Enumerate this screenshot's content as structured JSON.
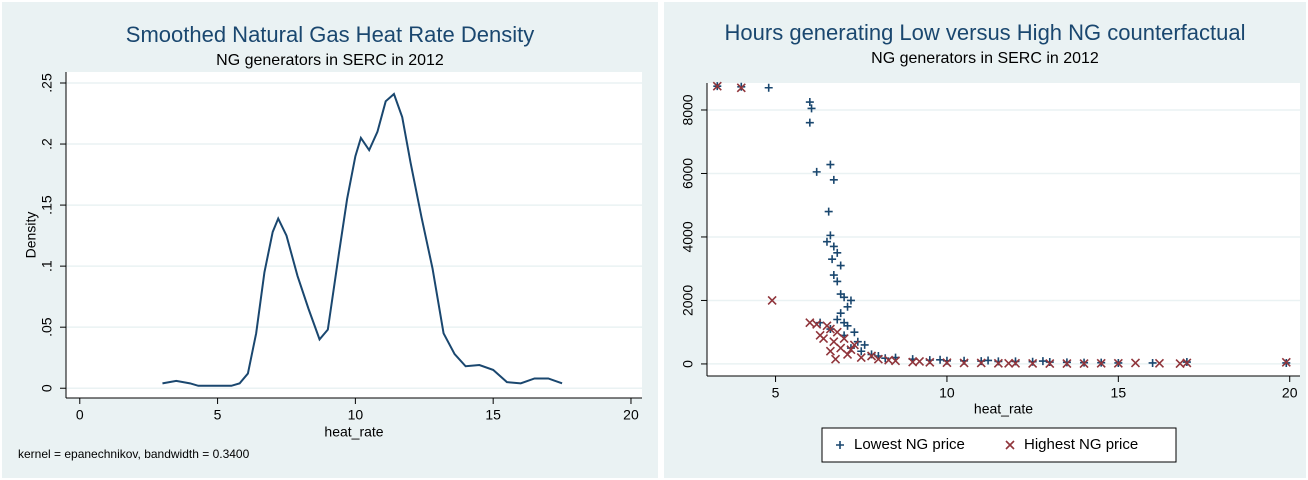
{
  "chart_data": [
    {
      "type": "line",
      "title": "Smoothed Natural Gas Heat Rate Density",
      "subtitle": "NG generators in SERC in 2012",
      "x_label": "heat_rate",
      "y_label": "Density",
      "note": "kernel = epanechnikov, bandwidth = 0.3400",
      "xlim": [
        -0.5,
        20.4
      ],
      "ylim": [
        -0.008,
        0.259
      ],
      "grid": true,
      "xticks": [
        0,
        5,
        10,
        15,
        20
      ],
      "yticks": [
        0,
        {
          "value": 0.05,
          "label": ".05"
        },
        {
          "value": 0.1,
          "label": ".1"
        },
        {
          "value": 0.15,
          "label": ".15"
        },
        {
          "value": 0.2,
          "label": ".2"
        },
        {
          "value": 0.25,
          "label": ".25"
        }
      ],
      "color": "#1a476f",
      "x": [
        3.0,
        3.5,
        4.0,
        4.3,
        5.0,
        5.5,
        5.8,
        6.1,
        6.4,
        6.7,
        7.0,
        7.2,
        7.5,
        7.9,
        8.3,
        8.7,
        9.0,
        9.4,
        9.7,
        10.0,
        10.2,
        10.5,
        10.8,
        11.1,
        11.4,
        11.7,
        12.0,
        12.4,
        12.8,
        13.2,
        13.6,
        14.0,
        14.5,
        15.0,
        15.5,
        16.0,
        16.5,
        17.0,
        17.5
      ],
      "values": [
        0.004,
        0.006,
        0.004,
        0.002,
        0.002,
        0.002,
        0.004,
        0.012,
        0.045,
        0.095,
        0.128,
        0.139,
        0.125,
        0.092,
        0.065,
        0.04,
        0.048,
        0.11,
        0.155,
        0.19,
        0.205,
        0.195,
        0.21,
        0.235,
        0.241,
        0.222,
        0.185,
        0.14,
        0.098,
        0.045,
        0.028,
        0.018,
        0.019,
        0.015,
        0.005,
        0.004,
        0.008,
        0.008,
        0.004
      ]
    },
    {
      "type": "scatter",
      "title": "Hours generating Low versus High NG counterfactual",
      "subtitle": "NG generators in SERC in 2012",
      "x_label": "heat_rate",
      "xlim": [
        3.0,
        20.3
      ],
      "ylim": [
        -380,
        8850
      ],
      "grid": true,
      "xticks": [
        5,
        10,
        15,
        20
      ],
      "yticks": [
        0,
        2000,
        4000,
        6000,
        8000
      ],
      "legend": "bottom",
      "series": [
        {
          "name": "Lowest NG price",
          "color": "#1a476f",
          "marker": "plus",
          "x": [
            3.3,
            4.0,
            4.8,
            6.0,
            6.05,
            6.0,
            6.2,
            6.6,
            6.7,
            6.55,
            6.5,
            6.6,
            6.7,
            6.65,
            6.8,
            6.7,
            6.8,
            6.9,
            6.9,
            7.0,
            7.1,
            6.9,
            7.0,
            7.2,
            7.1,
            7.3,
            7.0,
            7.4,
            7.2,
            7.5,
            7.8,
            8.0,
            8.5,
            9.0,
            9.5,
            10,
            10.5,
            11,
            11.5,
            12,
            12.5,
            13,
            13.5,
            14,
            14.5,
            15,
            16,
            17,
            19.9,
            6.3,
            6.6,
            6.8,
            7.6,
            8.2,
            9.8,
            11.2,
            12.8
          ],
          "values": [
            8750,
            8730,
            8700,
            8250,
            8050,
            7600,
            6050,
            6280,
            5800,
            4800,
            3850,
            4050,
            3700,
            3300,
            3500,
            2800,
            2600,
            3100,
            2200,
            2100,
            1800,
            1600,
            1300,
            2000,
            1200,
            1000,
            900,
            700,
            500,
            400,
            300,
            250,
            200,
            150,
            120,
            100,
            100,
            90,
            80,
            80,
            70,
            60,
            50,
            40,
            40,
            30,
            30,
            60,
            30,
            1300,
            1100,
            1400,
            600,
            180,
            130,
            110,
            90
          ]
        },
        {
          "name": "Highest NG price",
          "color": "#90353b",
          "marker": "cross",
          "x": [
            3.3,
            4.0,
            4.9,
            6.0,
            6.2,
            6.4,
            6.5,
            6.6,
            6.7,
            6.8,
            6.9,
            7.0,
            7.1,
            7.3,
            7.5,
            7.8,
            8.0,
            8.5,
            9.0,
            9.5,
            10,
            10.5,
            11,
            11.5,
            12,
            12.5,
            13,
            13.5,
            14,
            14.5,
            15,
            15.5,
            16.2,
            16.8,
            17,
            19.9,
            6.3,
            6.6,
            6.75,
            7.2,
            8.3,
            9.2,
            11.8
          ],
          "values": [
            8750,
            8700,
            2000,
            1300,
            1250,
            800,
            1200,
            1100,
            700,
            1000,
            500,
            800,
            300,
            600,
            200,
            250,
            150,
            100,
            60,
            50,
            40,
            30,
            30,
            20,
            20,
            15,
            10,
            10,
            10,
            20,
            20,
            30,
            20,
            10,
            30,
            50,
            900,
            400,
            150,
            450,
            120,
            80,
            20
          ]
        }
      ]
    }
  ]
}
